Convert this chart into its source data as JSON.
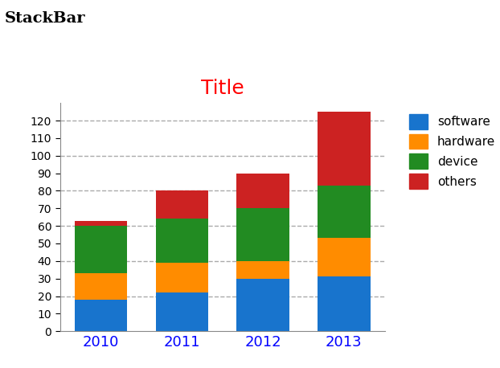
{
  "years": [
    "2010",
    "2011",
    "2012",
    "2013"
  ],
  "software": [
    18,
    22,
    30,
    31
  ],
  "hardware": [
    15,
    17,
    10,
    22
  ],
  "device": [
    27,
    25,
    30,
    30
  ],
  "others": [
    3,
    16,
    20,
    42
  ],
  "colors": {
    "software": "#1874cd",
    "hardware": "#ff8c00",
    "device": "#228b22",
    "others": "#cc2222"
  },
  "title": "Title",
  "title_color": "#ff0000",
  "suptitle": "StackBar",
  "xtick_color": "#0000ff",
  "ylim": [
    0,
    130
  ],
  "yticks_minor": [
    0,
    10,
    20,
    30,
    40,
    50,
    60,
    70,
    80,
    90,
    100,
    110,
    120
  ],
  "yticks_grid": [
    20,
    40,
    60,
    80,
    100,
    120
  ],
  "grid_color": "#aaaaaa",
  "bar_width": 0.65,
  "legend_labels": [
    "software",
    "hardware",
    "device",
    "others"
  ],
  "bg_color": "#ffffff",
  "figsize": [
    6.22,
    4.58
  ],
  "dpi": 100
}
